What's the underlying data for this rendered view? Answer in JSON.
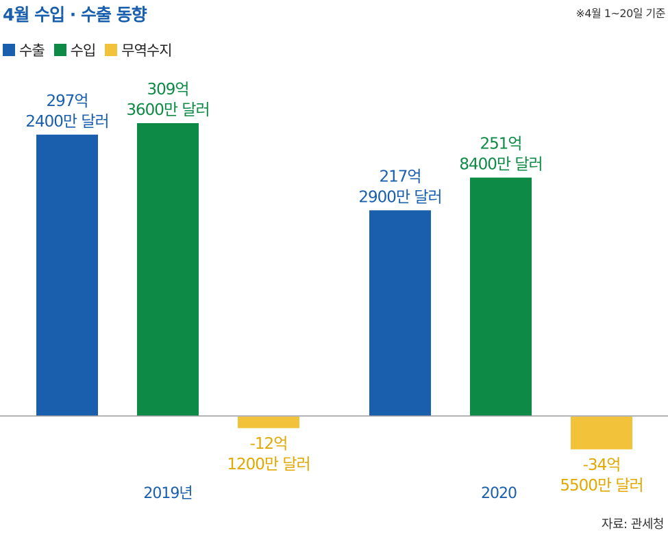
{
  "header": {
    "title": "4월 수입 · 수출 동향",
    "note": "※4월 1~20일 기준"
  },
  "legend": [
    {
      "label": "수출",
      "color": "#1a5fad"
    },
    {
      "label": "수입",
      "color": "#0d8a45"
    },
    {
      "label": "무역수지",
      "color": "#f2c33a"
    }
  ],
  "source": "자료: 관세청",
  "colors": {
    "export": "#1a5fad",
    "import": "#0d8a45",
    "balance": "#f2c33a",
    "balance_label": "#e0a800",
    "axis": "#9a9aa0"
  },
  "chart_data": {
    "type": "bar",
    "categories": [
      "2019년",
      "2020"
    ],
    "series": [
      {
        "name": "수출",
        "values": [
          297.24,
          217.29
        ],
        "labels": [
          [
            "297억",
            "2400만 달러"
          ],
          [
            "217억",
            "2900만 달러"
          ]
        ]
      },
      {
        "name": "수입",
        "values": [
          309.36,
          251.84
        ],
        "labels": [
          [
            "309억",
            "3600만 달러"
          ],
          [
            "251억",
            "8400만 달러"
          ]
        ]
      },
      {
        "name": "무역수지",
        "values": [
          -12.12,
          -34.55
        ],
        "labels": [
          [
            "-12억",
            "1200만 달러"
          ],
          [
            "-34억",
            "5500만 달러"
          ]
        ]
      }
    ],
    "unit": "억 달러"
  }
}
